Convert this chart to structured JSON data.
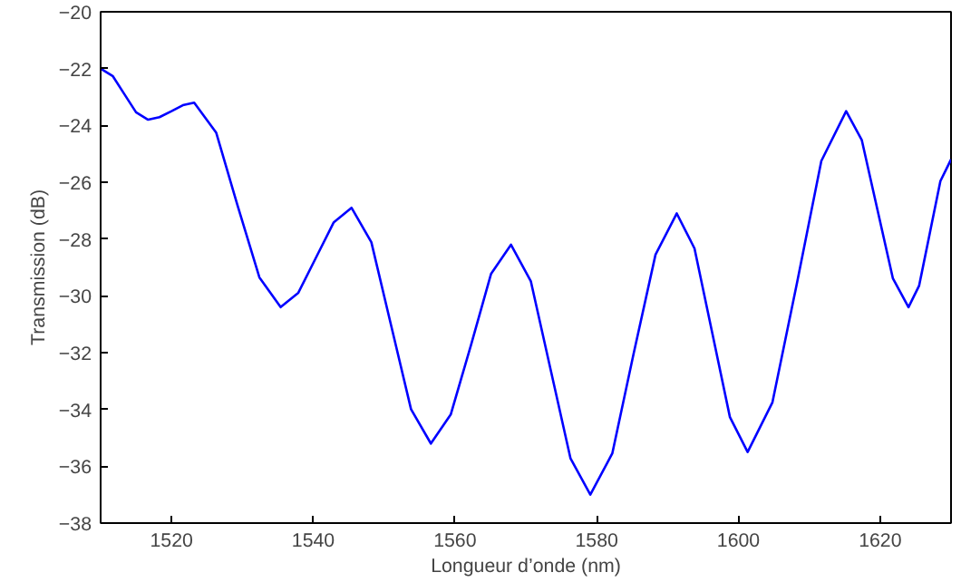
{
  "chart_data": {
    "type": "line",
    "xlabel": "Longueur d’onde (nm)",
    "ylabel": "Transmission (dB)",
    "xlim": [
      1510,
      1630
    ],
    "ylim": [
      -38,
      -20
    ],
    "xticks": [
      1520,
      1540,
      1560,
      1580,
      1600,
      1620
    ],
    "yticks": [
      -38,
      -36,
      -34,
      -32,
      -30,
      -28,
      -26,
      -24,
      -22,
      -20
    ],
    "grid": false,
    "line_style": "solid",
    "marker": "none",
    "series": [
      {
        "color": "#0000ff",
        "x": [
          1510,
          1511.7,
          1513.35,
          1515.0,
          1516.7,
          1518.3,
          1520.0,
          1521.6,
          1523.2,
          1526.3,
          1529.3,
          1532.4,
          1535.4,
          1537.9,
          1540.4,
          1542.9,
          1545.4,
          1548.2,
          1551.0,
          1553.8,
          1556.6,
          1559.4,
          1562.3,
          1565.1,
          1567.9,
          1570.7,
          1573.5,
          1576.3,
          1579.1,
          1582.2,
          1585.2,
          1588.3,
          1591.3,
          1593.8,
          1596.3,
          1598.8,
          1601.3,
          1604.8,
          1608.3,
          1611.7,
          1615.2,
          1617.4,
          1619.6,
          1621.8,
          1624,
          1625.5,
          1627,
          1628.5,
          1630
        ],
        "values": [
          -22.0,
          -22.26,
          -22.9,
          -23.54,
          -23.8,
          -23.71,
          -23.5,
          -23.29,
          -23.2,
          -24.25,
          -26.8,
          -29.35,
          -30.4,
          -29.89,
          -28.65,
          -27.41,
          -26.9,
          -28.11,
          -31.05,
          -33.99,
          -35.2,
          -34.18,
          -31.7,
          -29.22,
          -28.2,
          -29.48,
          -32.6,
          -35.72,
          -37.0,
          -35.55,
          -32.05,
          -28.55,
          -27.1,
          -28.33,
          -31.3,
          -34.27,
          -35.5,
          -33.75,
          -29.5,
          -25.25,
          -23.5,
          -24.51,
          -26.95,
          -29.39,
          -30.4,
          -29.64,
          -27.8,
          -25.96,
          -25.2
        ]
      }
    ]
  }
}
